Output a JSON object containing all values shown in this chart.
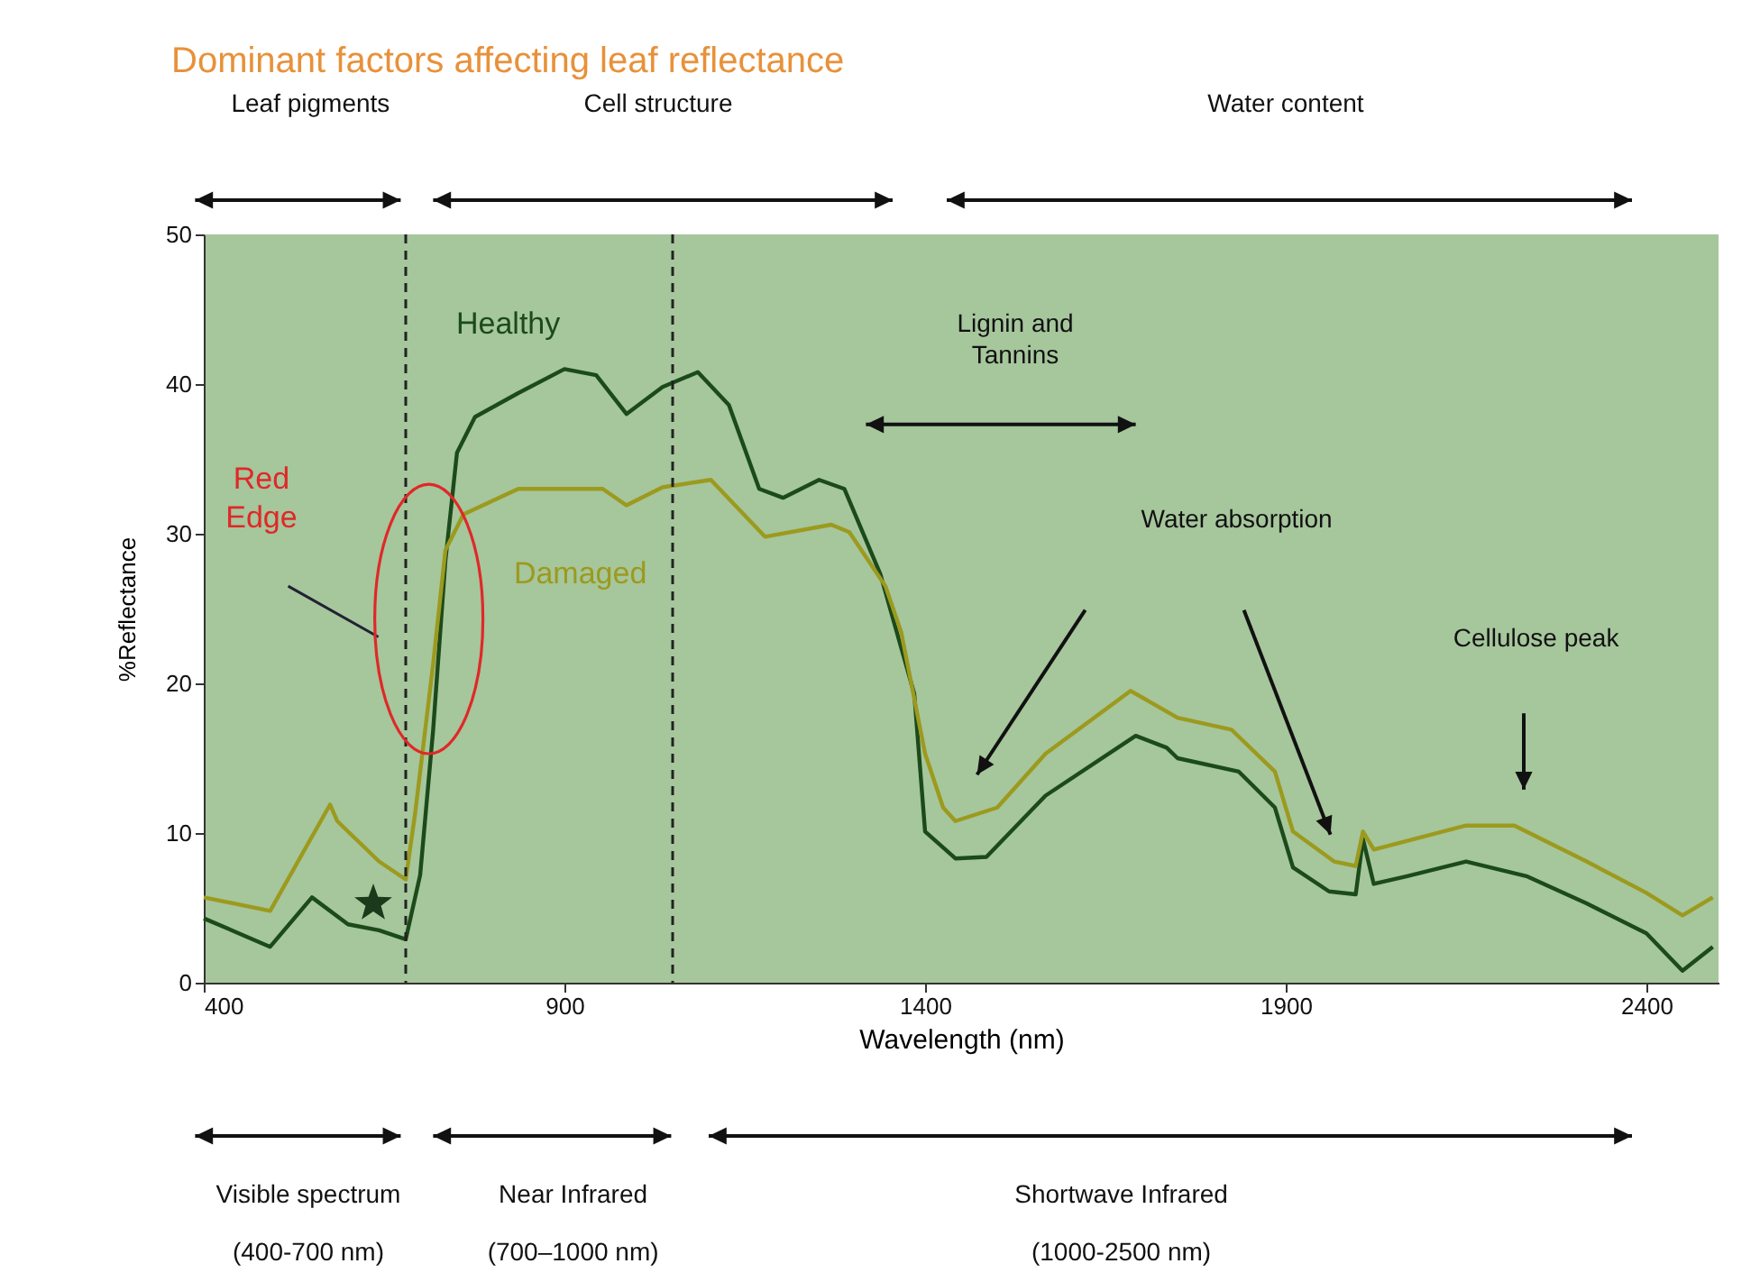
{
  "chart_data": {
    "type": "line",
    "title": "Dominant factors affecting leaf reflectance",
    "xlabel": "Wavelength (nm)",
    "ylabel": "%Reflectance",
    "xlim": [
      400,
      2500
    ],
    "xticks": [
      400,
      900,
      1400,
      1900,
      2400
    ],
    "ylim": [
      0,
      50
    ],
    "yticks": [
      0,
      10,
      20,
      30,
      40,
      50
    ],
    "legend": false,
    "line_style": "solid",
    "series": [
      {
        "name": "Healthy",
        "color": "#1b4a1b",
        "x": [
          400,
          492,
          550,
          600,
          643,
          680,
          700,
          718,
          735,
          751,
          776,
          836,
          900,
          944,
          986,
          1036,
          1085,
          1128,
          1170,
          1203,
          1253,
          1288,
          1338,
          1385,
          1400,
          1442,
          1485,
          1567,
          1692,
          1735,
          1750,
          1835,
          1885,
          1910,
          1960,
          1997,
          2007,
          2022,
          2067,
          2150,
          2235,
          2317,
          2400,
          2450,
          2492
        ],
        "values": [
          4.3,
          2.4,
          5.7,
          3.9,
          3.5,
          2.9,
          7.2,
          16.9,
          28.2,
          35.4,
          37.8,
          39.4,
          41,
          40.6,
          38,
          39.8,
          40.8,
          38.6,
          33,
          32.4,
          33.6,
          33,
          27.3,
          19.3,
          10.1,
          8.3,
          8.4,
          12.5,
          16.5,
          15.7,
          15,
          14.1,
          11.7,
          7.7,
          6.1,
          5.9,
          9.6,
          6.6,
          7.1,
          8.1,
          7.1,
          5.3,
          3.3,
          0.8,
          2.4
        ]
      },
      {
        "name": "Damaged",
        "color": "#9c9a1e",
        "x": [
          400,
          492,
          575,
          585,
          643,
          680,
          693,
          718,
          735,
          760,
          836,
          953,
          986,
          1036,
          1103,
          1178,
          1270,
          1295,
          1345,
          1367,
          1400,
          1425,
          1442,
          1500,
          1567,
          1685,
          1750,
          1825,
          1885,
          1910,
          1967,
          1997,
          2007,
          2022,
          2150,
          2217,
          2317,
          2400,
          2450,
          2492
        ],
        "values": [
          5.7,
          4.8,
          11.9,
          10.8,
          8.1,
          6.9,
          11.3,
          21.3,
          28.9,
          31.3,
          33,
          33,
          31.9,
          33.1,
          33.6,
          29.8,
          30.6,
          30.1,
          26.5,
          23.4,
          15.3,
          11.7,
          10.8,
          11.7,
          15.3,
          19.5,
          17.7,
          16.9,
          14.1,
          10.1,
          8.1,
          7.8,
          10.1,
          8.9,
          10.5,
          10.5,
          8.1,
          6.0,
          4.5,
          5.7
        ]
      }
    ],
    "ref_lines": [
      {
        "axis": "x",
        "value": 680,
        "color": "#222222",
        "line_style": "dashed"
      },
      {
        "axis": "x",
        "value": 1050,
        "color": "#222222",
        "line_style": "dashed"
      }
    ],
    "annotations": [
      "Leaf pigments",
      "Cell structure",
      "Water content",
      "Visible spectrum",
      "(400-700 nm)",
      "Near Infrared",
      "(700–1000 nm)",
      "Shortwave Infrared",
      "(1000-2500 nm)",
      "Red Edge",
      "Lignin and Tannins",
      "Water absorption",
      "Cellulose peak"
    ]
  }
}
